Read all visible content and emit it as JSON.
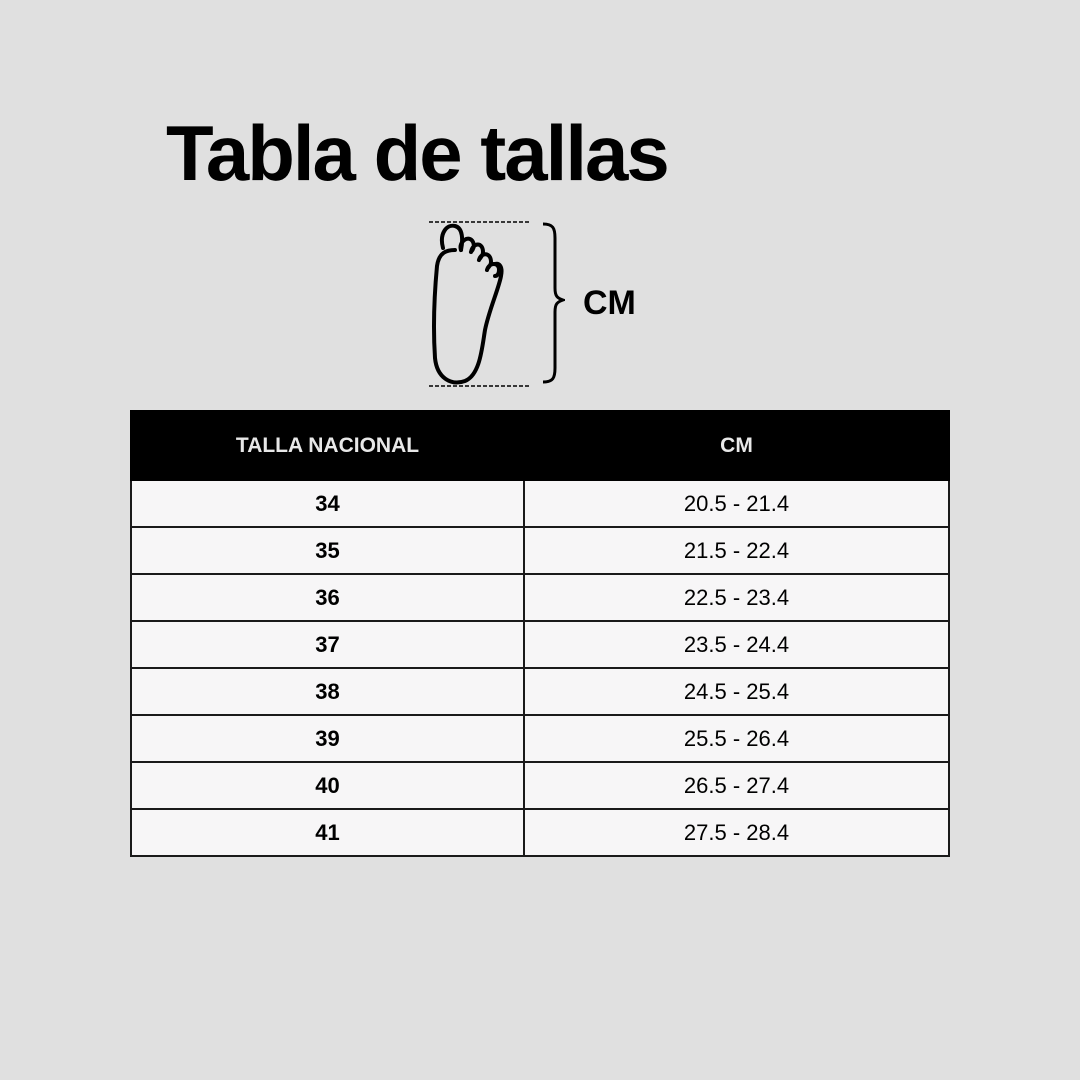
{
  "title": "Tabla de tallas",
  "diagram": {
    "icon": "foot-outline-icon",
    "measure_label": "CM"
  },
  "table": {
    "headers": [
      "TALLA NACIONAL",
      "CM"
    ],
    "rows": [
      {
        "size": "34",
        "cm": "20.5 - 21.4"
      },
      {
        "size": "35",
        "cm": "21.5 - 22.4"
      },
      {
        "size": "36",
        "cm": "22.5 - 23.4"
      },
      {
        "size": "37",
        "cm": "23.5 - 24.4"
      },
      {
        "size": "38",
        "cm": "24.5 - 25.4"
      },
      {
        "size": "39",
        "cm": "25.5 - 26.4"
      },
      {
        "size": "40",
        "cm": "26.5 - 27.4"
      },
      {
        "size": "41",
        "cm": "27.5 - 28.4"
      }
    ]
  },
  "colors": {
    "background": "#e0e0e0",
    "header_bg": "#000000",
    "cell_bg": "#f7f6f7"
  }
}
